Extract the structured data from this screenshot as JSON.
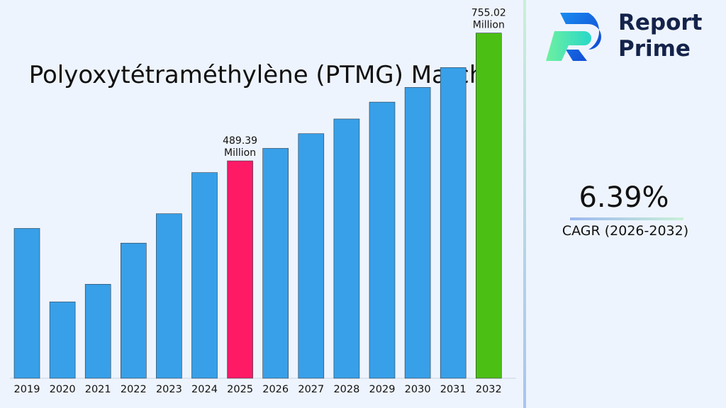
{
  "chart_data": {
    "type": "bar",
    "title": "Polyoxytétraméthylène (PTMG) Marché",
    "categories": [
      "2019",
      "2020",
      "2021",
      "2022",
      "2023",
      "2024",
      "2025",
      "2026",
      "2027",
      "2028",
      "2029",
      "2030",
      "2031",
      "2032"
    ],
    "values": [
      204,
      104,
      128,
      184,
      224,
      280,
      296,
      313,
      333,
      353,
      376,
      396,
      423,
      470
    ],
    "ylim": [
      0,
      515
    ],
    "colors": {
      "default": "#38a0e8",
      "highlight_2025": "#ff1a66",
      "highlight_2032": "#4cbf14"
    },
    "data_labels": [
      {
        "category": "2025",
        "value_text": "489.39",
        "unit_text": "Million"
      },
      {
        "category": "2032",
        "value_text": "755.02",
        "unit_text": "Million"
      }
    ],
    "grid": false,
    "legend": "none"
  },
  "brand": {
    "line1": "Report",
    "line2": "Prime"
  },
  "cagr": {
    "value": "6.39%",
    "label": "CAGR (2026-2032)"
  }
}
